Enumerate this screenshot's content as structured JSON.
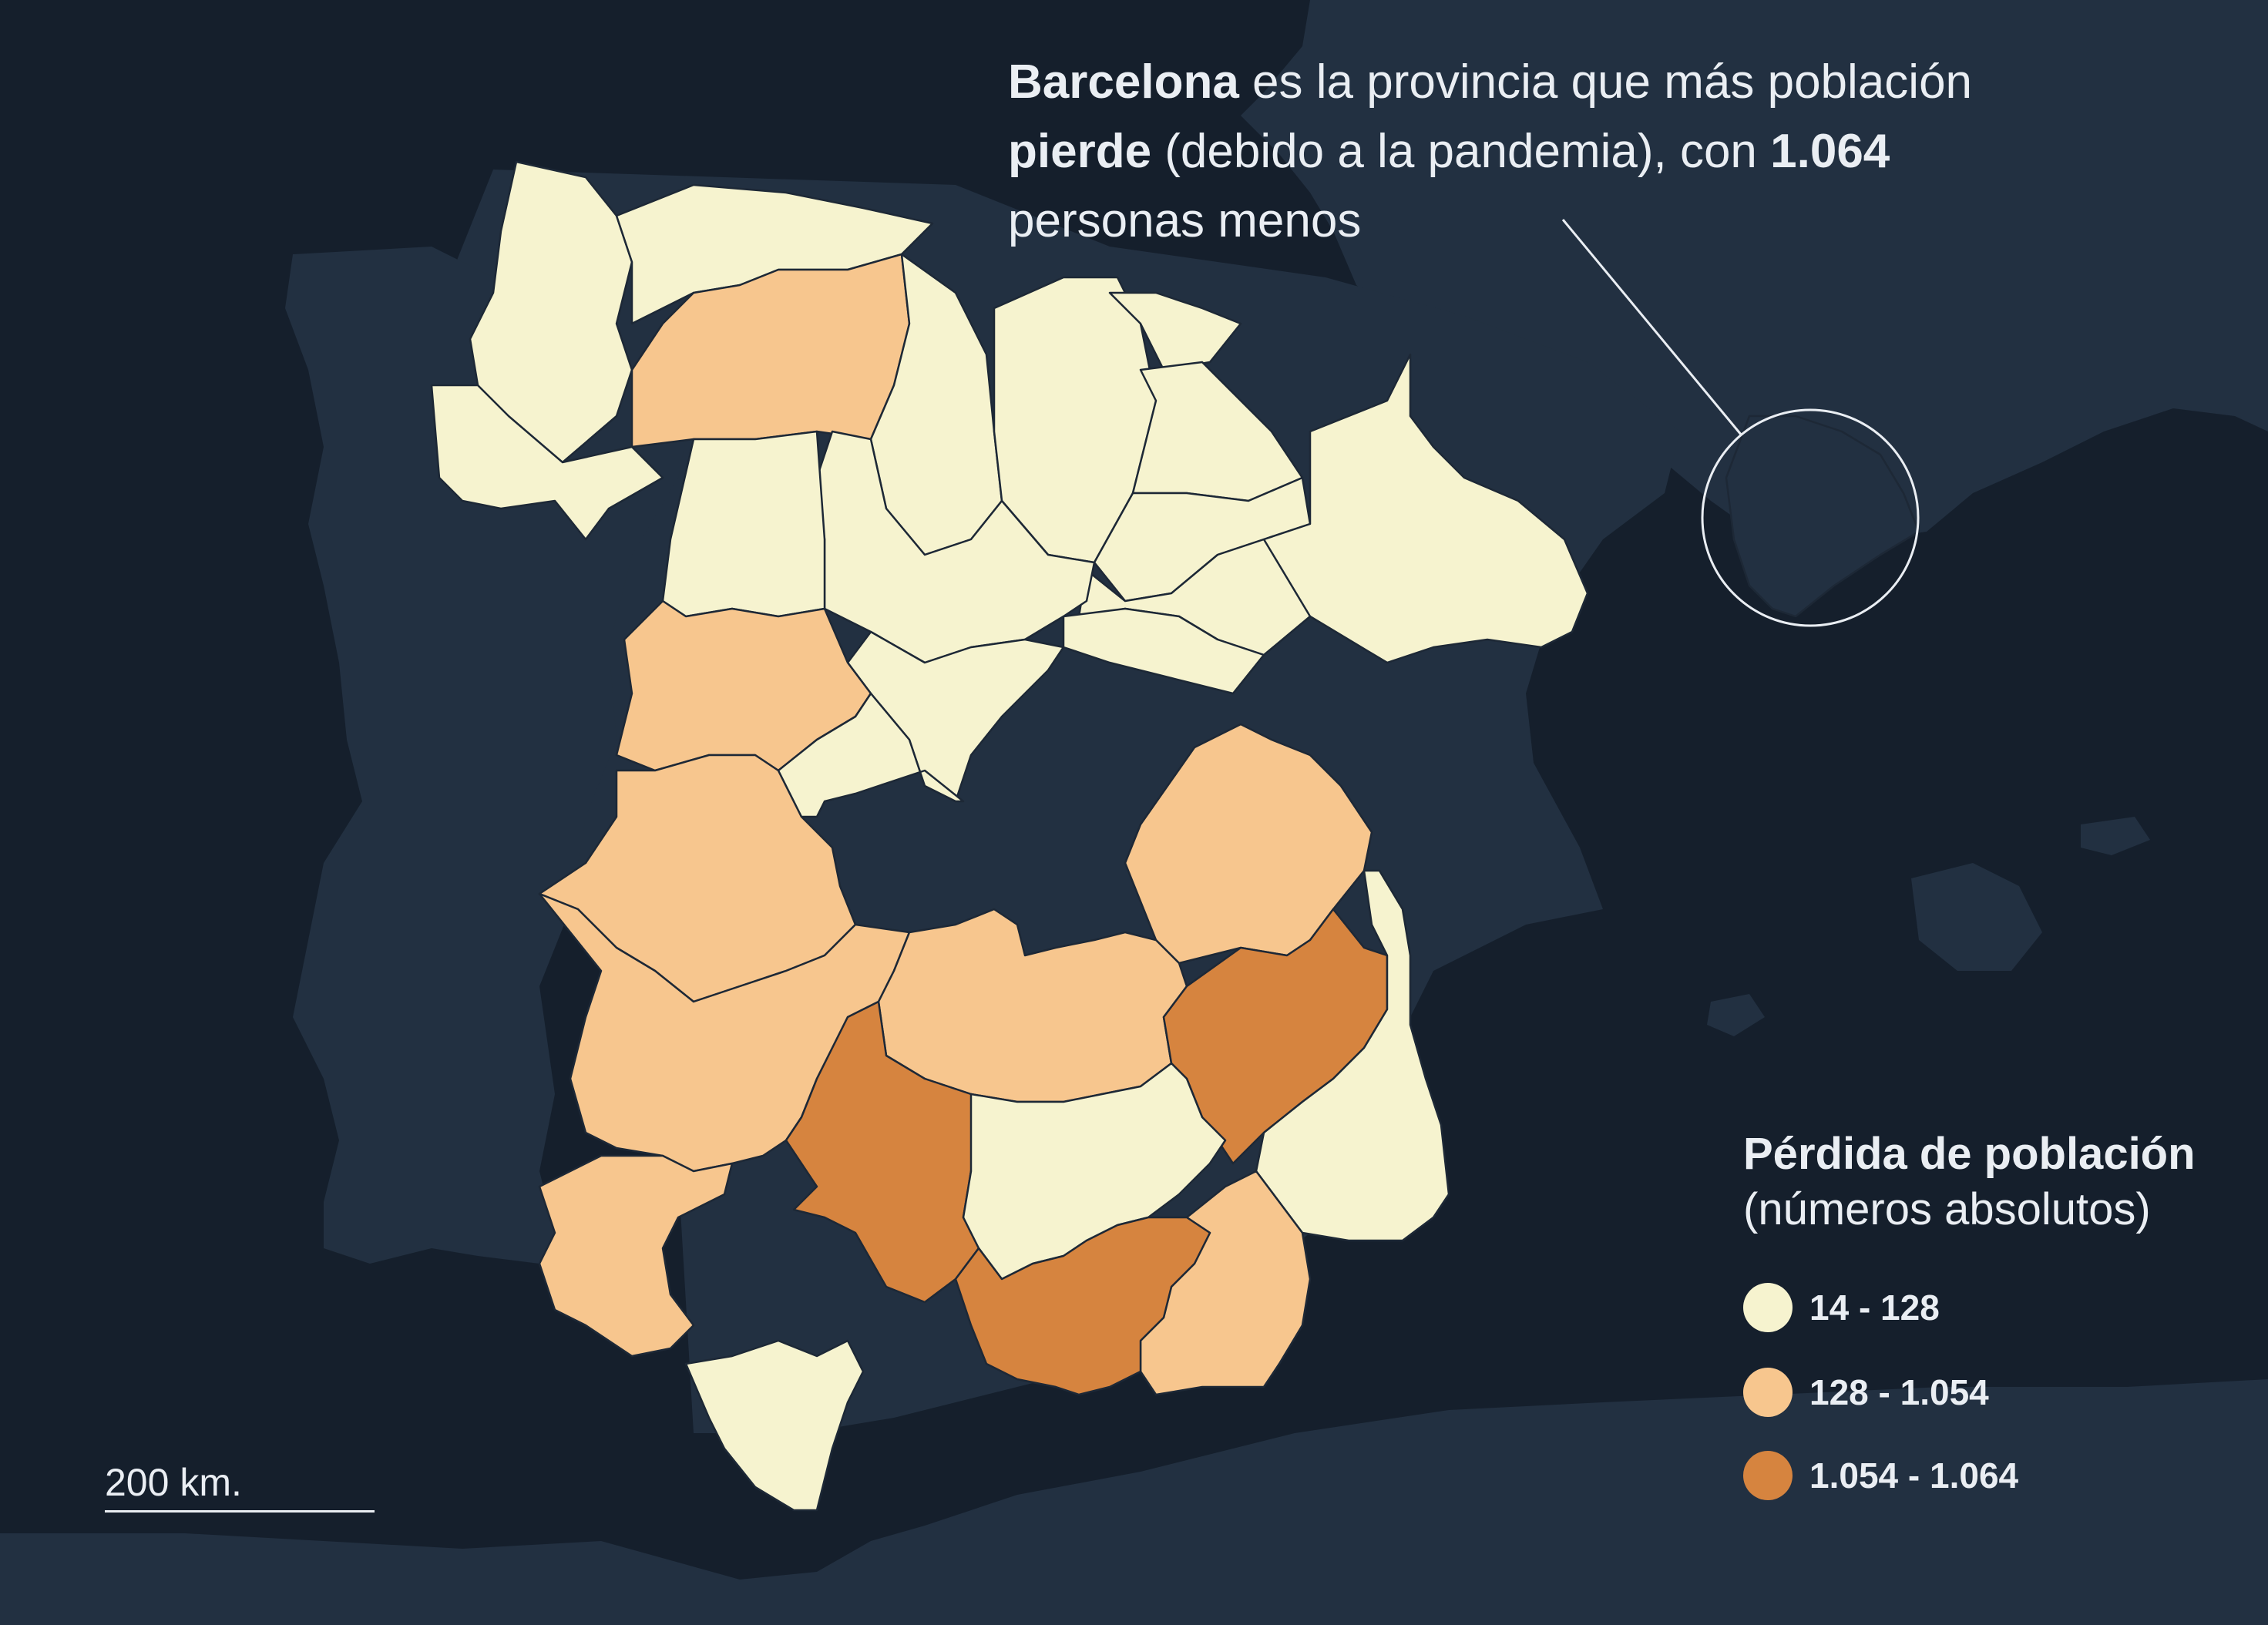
{
  "colors": {
    "sea": "#151f2c",
    "land_other": "#223041",
    "class_low": "#f6f3cf",
    "class_mid": "#f7c68e",
    "class_high": "#d6843f",
    "text": "#eaeef3"
  },
  "annotation": {
    "bold1": "Barcelona",
    "text1": " es la provincia que más población",
    "bold2": "pierde",
    "text2": " (debido a la pandemia), con ",
    "bold3": "1.064",
    "text3": "personas menos"
  },
  "legend": {
    "title": "Pérdida de población",
    "subtitle": "(números absolutos)",
    "items": [
      {
        "label": "14 - 128",
        "color": "#f6f3cf"
      },
      {
        "label": "128 - 1.054",
        "color": "#f7c68e"
      },
      {
        "label": "1.054 - 1.064",
        "color": "#d6843f"
      }
    ]
  },
  "scale": {
    "label": "200 km."
  },
  "regions": [
    {
      "class": "low"
    },
    {
      "class": "low"
    },
    {
      "class": "low"
    },
    {
      "class": "mid"
    },
    {
      "class": "low"
    },
    {
      "class": "low"
    },
    {
      "class": "low"
    },
    {
      "class": "low"
    },
    {
      "class": "low"
    },
    {
      "class": "low"
    },
    {
      "class": "low"
    },
    {
      "class": "low"
    },
    {
      "class": "low"
    },
    {
      "class": "low"
    },
    {
      "class": "low"
    },
    {
      "class": "mid"
    },
    {
      "class": "mid"
    },
    {
      "class": "low"
    },
    {
      "class": "mid"
    },
    {
      "class": "mid"
    },
    {
      "class": "mid"
    },
    {
      "class": "high"
    },
    {
      "class": "high"
    },
    {
      "class": "low"
    },
    {
      "class": "low"
    },
    {
      "class": "mid"
    },
    {
      "class": "mid"
    },
    {
      "class": "low"
    },
    {
      "class": "high"
    }
  ]
}
